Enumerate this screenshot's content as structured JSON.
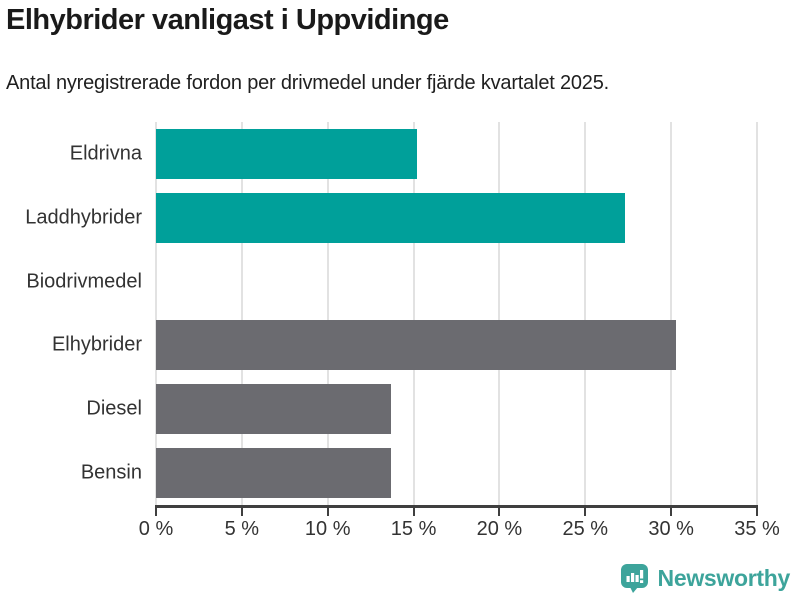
{
  "header": {
    "title": "Elhybrider vanligast i Uppvidinge",
    "subtitle": "Antal nyregistrerade fordon per drivmedel under fjärde kvartalet 2025."
  },
  "branding": {
    "logo_text": "Newsworthy",
    "logo_icon": "newsworthy-chart-bubble-icon",
    "logo_color": "#3da49b"
  },
  "colors": {
    "highlight_bar": "#00a09a",
    "default_bar": "#6b6b70",
    "gridline": "#e2e2e2",
    "axis_line": "#3f3f3f",
    "axis_text": "#333333",
    "title_text": "#1a1a1a"
  },
  "chart_data": {
    "type": "bar",
    "orientation": "horizontal",
    "title": "Elhybrider vanligast i Uppvidinge",
    "subtitle": "Antal nyregistrerade fordon per drivmedel under fjärde kvartalet 2025.",
    "categories": [
      "Eldrivna",
      "Laddhybrider",
      "Biodrivmedel",
      "Elhybrider",
      "Diesel",
      "Bensin"
    ],
    "values": [
      15.2,
      27.3,
      0,
      30.3,
      13.7,
      13.7
    ],
    "unit": "%",
    "bar_colors": [
      "#00a09a",
      "#00a09a",
      "#6b6b70",
      "#6b6b70",
      "#6b6b70",
      "#6b6b70"
    ],
    "xlim": [
      0,
      35
    ],
    "xticks": [
      0,
      5,
      10,
      15,
      20,
      25,
      30,
      35
    ],
    "xtick_labels": [
      "0 %",
      "5 %",
      "10 %",
      "15 %",
      "20 %",
      "25 %",
      "30 %",
      "35 %"
    ],
    "grid": true,
    "legend": false
  }
}
